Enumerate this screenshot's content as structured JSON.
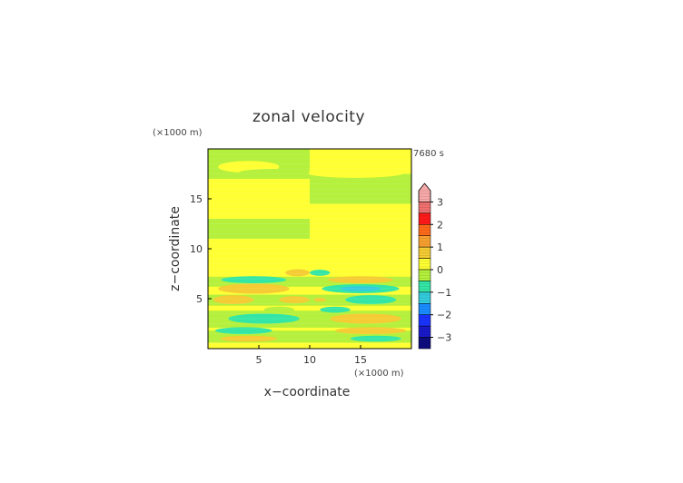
{
  "chart_data": {
    "type": "heatmap",
    "title": "zonal velocity",
    "time_label": "7680 s",
    "xlabel": "x−coordinate",
    "ylabel": "z−coordinate",
    "x_unit": "(×1000 m)",
    "y_unit": "(×1000 m)",
    "xlim": [
      0,
      20
    ],
    "ylim": [
      0,
      20
    ],
    "x_ticks": [
      5,
      10,
      15
    ],
    "y_ticks": [
      5,
      10,
      15
    ],
    "grid": false,
    "colorbar": {
      "ticks": [
        3,
        2,
        1,
        0,
        -1,
        -2,
        -3
      ],
      "levels": [
        -3.5,
        3.5
      ],
      "colors": [
        {
          "from": 3.0,
          "to": 3.5,
          "color": "#f7a8a8"
        },
        {
          "from": 2.5,
          "to": 3.0,
          "color": "#f07070"
        },
        {
          "from": 2.0,
          "to": 2.5,
          "color": "#ff1a1a"
        },
        {
          "from": 1.5,
          "to": 2.0,
          "color": "#ff6a1a"
        },
        {
          "from": 1.0,
          "to": 1.5,
          "color": "#f7a030"
        },
        {
          "from": 0.5,
          "to": 1.0,
          "color": "#f5cc33"
        },
        {
          "from": 0.0,
          "to": 0.5,
          "color": "#ffff33"
        },
        {
          "from": -0.5,
          "to": 0.0,
          "color": "#b4f03c"
        },
        {
          "from": -1.0,
          "to": -0.5,
          "color": "#33e6a6"
        },
        {
          "from": -1.5,
          "to": -1.0,
          "color": "#33ccdd"
        },
        {
          "from": -2.0,
          "to": -1.5,
          "color": "#1a8cff"
        },
        {
          "from": -2.5,
          "to": -2.0,
          "color": "#1a33ff"
        },
        {
          "from": -3.0,
          "to": -2.5,
          "color": "#1a1acc"
        },
        {
          "from": -3.5,
          "to": -3.0,
          "color": "#0d0d80"
        }
      ]
    },
    "background_value": 0.25,
    "bands": [
      {
        "z": [
          17.0,
          20.0
        ],
        "x": [
          0,
          10
        ],
        "value": -0.25
      },
      {
        "z": [
          13.0,
          17.0
        ],
        "x": [
          0,
          10
        ],
        "value": 0.25
      },
      {
        "z": [
          11.0,
          13.0
        ],
        "x": [
          0,
          10
        ],
        "value": -0.25
      },
      {
        "z": [
          8.0,
          11.0
        ],
        "x": [
          0,
          20
        ],
        "value": 0.25
      },
      {
        "z": [
          14.5,
          17.5
        ],
        "x": [
          10,
          20
        ],
        "value": -0.25
      },
      {
        "z": [
          6.2,
          7.2
        ],
        "x": [
          0,
          20
        ],
        "value": -0.25
      },
      {
        "z": [
          4.3,
          5.4
        ],
        "x": [
          0,
          20
        ],
        "value": -0.25
      },
      {
        "z": [
          2.1,
          3.8
        ],
        "x": [
          0,
          20
        ],
        "value": -0.25
      },
      {
        "z": [
          0.6,
          1.8
        ],
        "x": [
          0,
          20
        ],
        "value": -0.25
      }
    ],
    "features": [
      {
        "cx": 4.0,
        "cz": 18.2,
        "rx": 3.0,
        "rz": 0.6,
        "value": 0.25
      },
      {
        "cx": 14.5,
        "cz": 17.6,
        "rx": 4.8,
        "rz": 0.5,
        "value": 0.25
      },
      {
        "cx": 6.5,
        "cz": 17.6,
        "rx": 3.5,
        "rz": 0.4,
        "value": -0.25
      },
      {
        "cx": 8.8,
        "cz": 7.6,
        "rx": 1.2,
        "rz": 0.35,
        "value": 0.75
      },
      {
        "cx": 11.0,
        "cz": 7.6,
        "rx": 1.0,
        "rz": 0.3,
        "value": -0.75
      },
      {
        "cx": 4.5,
        "cz": 6.9,
        "rx": 3.2,
        "rz": 0.35,
        "value": -0.75
      },
      {
        "cx": 15.0,
        "cz": 6.9,
        "rx": 3.2,
        "rz": 0.35,
        "value": 0.75
      },
      {
        "cx": 4.5,
        "cz": 6.0,
        "rx": 3.5,
        "rz": 0.5,
        "value": 0.75
      },
      {
        "cx": 15.0,
        "cz": 6.0,
        "rx": 3.8,
        "rz": 0.45,
        "value": -0.75
      },
      {
        "cx": 15.0,
        "cz": 6.0,
        "rx": 2.0,
        "rz": 0.25,
        "value": -1.25
      },
      {
        "cx": 2.5,
        "cz": 4.9,
        "rx": 2.0,
        "rz": 0.45,
        "value": 0.75
      },
      {
        "cx": 8.5,
        "cz": 4.9,
        "rx": 1.5,
        "rz": 0.35,
        "value": 0.75
      },
      {
        "cx": 16.0,
        "cz": 4.9,
        "rx": 2.5,
        "rz": 0.45,
        "value": -0.75
      },
      {
        "cx": 11.0,
        "cz": 4.9,
        "rx": 0.6,
        "rz": 0.2,
        "value": 0.75
      },
      {
        "cx": 7.0,
        "cz": 3.9,
        "rx": 1.5,
        "rz": 0.3,
        "value": -0.25
      },
      {
        "cx": 12.5,
        "cz": 3.9,
        "rx": 1.5,
        "rz": 0.3,
        "value": -0.75
      },
      {
        "cx": 5.5,
        "cz": 3.0,
        "rx": 3.5,
        "rz": 0.5,
        "value": -0.75
      },
      {
        "cx": 15.5,
        "cz": 3.0,
        "rx": 3.5,
        "rz": 0.5,
        "value": 0.75
      },
      {
        "cx": 3.5,
        "cz": 1.8,
        "rx": 2.8,
        "rz": 0.35,
        "value": -0.75
      },
      {
        "cx": 16.0,
        "cz": 1.8,
        "rx": 3.5,
        "rz": 0.35,
        "value": 0.75
      },
      {
        "cx": 4.0,
        "cz": 1.0,
        "rx": 2.8,
        "rz": 0.3,
        "value": 0.75
      },
      {
        "cx": 16.5,
        "cz": 1.0,
        "rx": 2.5,
        "rz": 0.3,
        "value": -0.75
      }
    ]
  }
}
